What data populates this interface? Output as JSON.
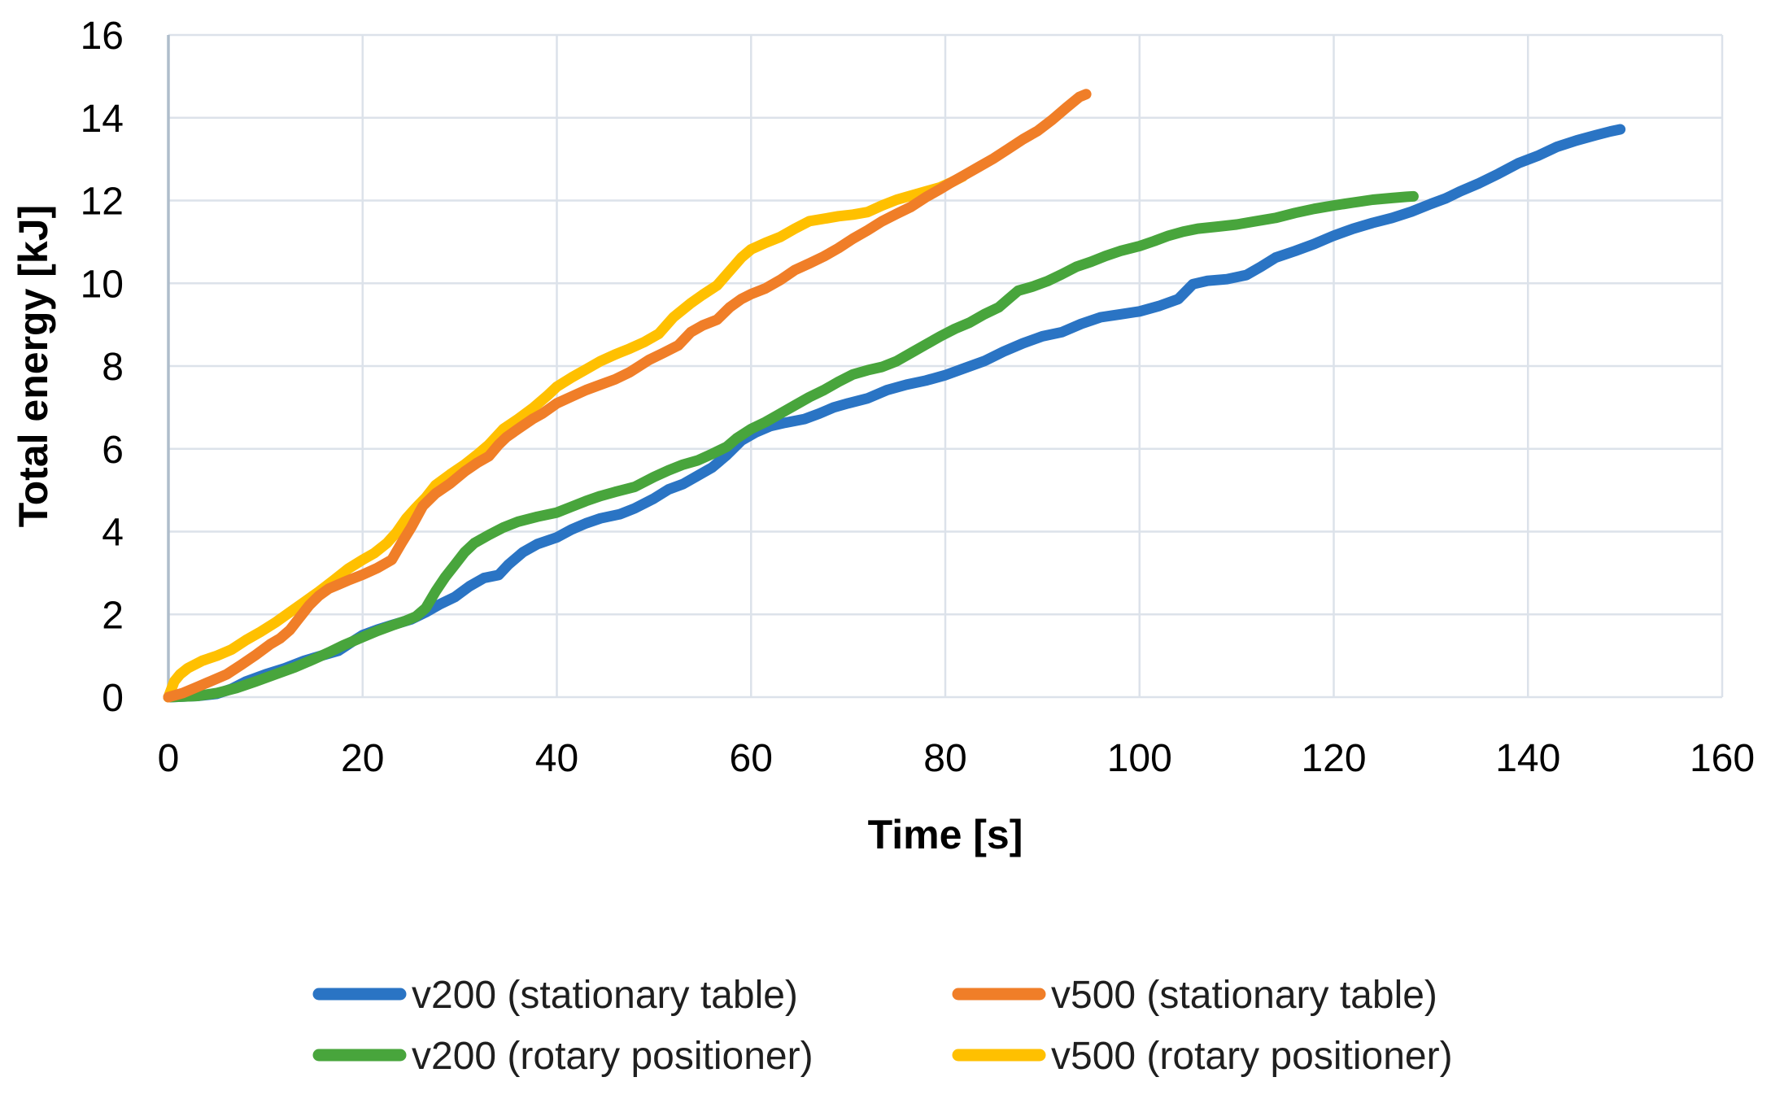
{
  "chart_data": {
    "type": "line",
    "title": "",
    "xlabel": "Time [s]",
    "ylabel": "Total energy [kJ]",
    "xlim": [
      0,
      160
    ],
    "ylim": [
      0,
      16
    ],
    "x_ticks": [
      "0",
      "20",
      "40",
      "60",
      "80",
      "100",
      "120",
      "140",
      "160"
    ],
    "x_tick_values": [
      0,
      20,
      40,
      60,
      80,
      100,
      120,
      140,
      160
    ],
    "y_ticks": [
      "0",
      "2",
      "4",
      "6",
      "8",
      "10",
      "12",
      "14",
      "16"
    ],
    "y_tick_values": [
      0,
      2,
      4,
      6,
      8,
      10,
      12,
      14,
      16
    ],
    "grid": true,
    "legend_position": "bottom",
    "colors": {
      "grid": "#DCE2EA",
      "axis": "#AFBDCB",
      "tick_text": "#000000",
      "legend_text": "#1F1F1F",
      "background": "#FFFFFF"
    },
    "legend_rows": [
      [
        0,
        1
      ],
      [
        2,
        3
      ]
    ],
    "draw_order": [
      0,
      2,
      3,
      1
    ],
    "series": [
      {
        "id": "v200-stationary-table",
        "name": "v200 (stationary table)",
        "color": "#2A74C4",
        "points": [
          [
            0,
            0
          ],
          [
            3,
            0.03
          ],
          [
            5,
            0.08
          ],
          [
            6.5,
            0.2
          ],
          [
            8,
            0.38
          ],
          [
            10,
            0.55
          ],
          [
            12,
            0.7
          ],
          [
            14,
            0.88
          ],
          [
            16,
            1.02
          ],
          [
            17.5,
            1.12
          ],
          [
            19,
            1.35
          ],
          [
            20,
            1.5
          ],
          [
            21.5,
            1.63
          ],
          [
            23,
            1.74
          ],
          [
            25,
            1.88
          ],
          [
            26.5,
            2.05
          ],
          [
            28,
            2.25
          ],
          [
            29.5,
            2.42
          ],
          [
            31,
            2.68
          ],
          [
            32.5,
            2.88
          ],
          [
            34,
            2.95
          ],
          [
            35,
            3.2
          ],
          [
            36.5,
            3.5
          ],
          [
            38,
            3.7
          ],
          [
            40,
            3.86
          ],
          [
            41.5,
            4.05
          ],
          [
            43,
            4.2
          ],
          [
            44.5,
            4.32
          ],
          [
            46.5,
            4.42
          ],
          [
            48,
            4.56
          ],
          [
            50,
            4.8
          ],
          [
            51.5,
            5.02
          ],
          [
            53,
            5.15
          ],
          [
            54.5,
            5.35
          ],
          [
            56,
            5.55
          ],
          [
            57.5,
            5.85
          ],
          [
            59,
            6.2
          ],
          [
            60.5,
            6.4
          ],
          [
            62,
            6.55
          ],
          [
            63.5,
            6.63
          ],
          [
            65.5,
            6.72
          ],
          [
            67,
            6.85
          ],
          [
            68.5,
            7.0
          ],
          [
            70,
            7.1
          ],
          [
            72,
            7.22
          ],
          [
            74,
            7.42
          ],
          [
            76,
            7.55
          ],
          [
            78,
            7.65
          ],
          [
            80,
            7.78
          ],
          [
            82,
            7.95
          ],
          [
            84,
            8.12
          ],
          [
            86,
            8.35
          ],
          [
            88,
            8.55
          ],
          [
            90,
            8.72
          ],
          [
            92,
            8.82
          ],
          [
            94,
            9.02
          ],
          [
            96,
            9.18
          ],
          [
            98,
            9.25
          ],
          [
            100,
            9.32
          ],
          [
            102,
            9.45
          ],
          [
            104,
            9.62
          ],
          [
            105.5,
            9.98
          ],
          [
            107,
            10.06
          ],
          [
            109,
            10.1
          ],
          [
            111,
            10.2
          ],
          [
            112.5,
            10.4
          ],
          [
            114,
            10.62
          ],
          [
            116,
            10.78
          ],
          [
            118,
            10.95
          ],
          [
            120,
            11.15
          ],
          [
            122,
            11.32
          ],
          [
            124,
            11.46
          ],
          [
            126,
            11.58
          ],
          [
            128,
            11.73
          ],
          [
            130,
            11.92
          ],
          [
            131.5,
            12.05
          ],
          [
            133,
            12.22
          ],
          [
            135,
            12.42
          ],
          [
            137,
            12.65
          ],
          [
            139,
            12.9
          ],
          [
            141,
            13.08
          ],
          [
            143,
            13.3
          ],
          [
            145,
            13.45
          ],
          [
            147,
            13.58
          ],
          [
            148.5,
            13.67
          ],
          [
            149.5,
            13.72
          ]
        ]
      },
      {
        "id": "v500-stationary-table",
        "name": "v500 (stationary table)",
        "color": "#F07E28",
        "points": [
          [
            0,
            0
          ],
          [
            1.5,
            0.1
          ],
          [
            3,
            0.25
          ],
          [
            5,
            0.45
          ],
          [
            6,
            0.55
          ],
          [
            7.5,
            0.78
          ],
          [
            9,
            1.02
          ],
          [
            10.5,
            1.28
          ],
          [
            11.5,
            1.42
          ],
          [
            12.5,
            1.62
          ],
          [
            13.5,
            1.92
          ],
          [
            14.5,
            2.22
          ],
          [
            15.5,
            2.45
          ],
          [
            16.5,
            2.62
          ],
          [
            17.5,
            2.72
          ],
          [
            18.5,
            2.82
          ],
          [
            20,
            2.96
          ],
          [
            21.5,
            3.12
          ],
          [
            23,
            3.32
          ],
          [
            24,
            3.72
          ],
          [
            25,
            4.1
          ],
          [
            26.2,
            4.62
          ],
          [
            27.5,
            4.92
          ],
          [
            29,
            5.16
          ],
          [
            30.5,
            5.45
          ],
          [
            31.8,
            5.66
          ],
          [
            33,
            5.82
          ],
          [
            34,
            6.1
          ],
          [
            34.8,
            6.28
          ],
          [
            36,
            6.48
          ],
          [
            37.5,
            6.72
          ],
          [
            38.5,
            6.85
          ],
          [
            40,
            7.1
          ],
          [
            41.5,
            7.26
          ],
          [
            43,
            7.42
          ],
          [
            44.5,
            7.55
          ],
          [
            46,
            7.68
          ],
          [
            47.5,
            7.85
          ],
          [
            48.5,
            8.0
          ],
          [
            49.5,
            8.15
          ],
          [
            51,
            8.32
          ],
          [
            52.5,
            8.5
          ],
          [
            53.8,
            8.82
          ],
          [
            55,
            8.98
          ],
          [
            56.5,
            9.12
          ],
          [
            57.8,
            9.42
          ],
          [
            59,
            9.62
          ],
          [
            60,
            9.74
          ],
          [
            61.5,
            9.88
          ],
          [
            63,
            10.08
          ],
          [
            64.5,
            10.32
          ],
          [
            66,
            10.48
          ],
          [
            67.5,
            10.65
          ],
          [
            69,
            10.85
          ],
          [
            70.5,
            11.08
          ],
          [
            72,
            11.28
          ],
          [
            73.5,
            11.5
          ],
          [
            75,
            11.68
          ],
          [
            76.5,
            11.85
          ],
          [
            78,
            12.08
          ],
          [
            79.5,
            12.28
          ],
          [
            80.5,
            12.42
          ],
          [
            82,
            12.62
          ],
          [
            83.5,
            12.82
          ],
          [
            85,
            13.02
          ],
          [
            86.5,
            13.25
          ],
          [
            88,
            13.48
          ],
          [
            89.5,
            13.68
          ],
          [
            91,
            13.95
          ],
          [
            92.5,
            14.25
          ],
          [
            93.8,
            14.5
          ],
          [
            94.5,
            14.57
          ]
        ]
      },
      {
        "id": "v200-rotary-positioner",
        "name": "v200 (rotary positioner)",
        "color": "#48A53C",
        "points": [
          [
            0,
            0
          ],
          [
            3,
            0.03
          ],
          [
            5,
            0.1
          ],
          [
            7,
            0.22
          ],
          [
            9,
            0.38
          ],
          [
            11,
            0.55
          ],
          [
            13,
            0.72
          ],
          [
            15,
            0.92
          ],
          [
            16.5,
            1.08
          ],
          [
            18,
            1.25
          ],
          [
            20,
            1.45
          ],
          [
            21.5,
            1.6
          ],
          [
            23,
            1.73
          ],
          [
            24.5,
            1.85
          ],
          [
            25.5,
            1.95
          ],
          [
            26.5,
            2.15
          ],
          [
            27.5,
            2.55
          ],
          [
            28.5,
            2.9
          ],
          [
            29.5,
            3.2
          ],
          [
            30.5,
            3.5
          ],
          [
            31.5,
            3.72
          ],
          [
            33,
            3.92
          ],
          [
            34.5,
            4.1
          ],
          [
            36,
            4.24
          ],
          [
            38,
            4.36
          ],
          [
            40,
            4.46
          ],
          [
            41.5,
            4.6
          ],
          [
            43,
            4.74
          ],
          [
            44.5,
            4.86
          ],
          [
            46,
            4.96
          ],
          [
            48,
            5.08
          ],
          [
            50,
            5.32
          ],
          [
            51.5,
            5.48
          ],
          [
            53,
            5.62
          ],
          [
            54.5,
            5.72
          ],
          [
            56,
            5.88
          ],
          [
            57.5,
            6.05
          ],
          [
            58.5,
            6.25
          ],
          [
            60,
            6.48
          ],
          [
            61.5,
            6.65
          ],
          [
            63,
            6.85
          ],
          [
            64.5,
            7.05
          ],
          [
            66,
            7.25
          ],
          [
            67.5,
            7.42
          ],
          [
            69,
            7.62
          ],
          [
            70.5,
            7.8
          ],
          [
            72,
            7.9
          ],
          [
            73.5,
            7.98
          ],
          [
            75,
            8.12
          ],
          [
            76.5,
            8.32
          ],
          [
            78,
            8.52
          ],
          [
            79.5,
            8.72
          ],
          [
            81,
            8.9
          ],
          [
            82.5,
            9.05
          ],
          [
            84,
            9.25
          ],
          [
            85.5,
            9.42
          ],
          [
            86.5,
            9.62
          ],
          [
            87.5,
            9.82
          ],
          [
            89,
            9.92
          ],
          [
            90.5,
            10.05
          ],
          [
            92,
            10.22
          ],
          [
            93.5,
            10.4
          ],
          [
            95,
            10.52
          ],
          [
            96.5,
            10.66
          ],
          [
            98,
            10.78
          ],
          [
            100,
            10.9
          ],
          [
            101.5,
            11.02
          ],
          [
            103,
            11.15
          ],
          [
            104.5,
            11.25
          ],
          [
            106,
            11.32
          ],
          [
            108,
            11.37
          ],
          [
            110,
            11.42
          ],
          [
            112,
            11.5
          ],
          [
            114,
            11.58
          ],
          [
            116,
            11.7
          ],
          [
            118,
            11.8
          ],
          [
            120,
            11.88
          ],
          [
            122,
            11.95
          ],
          [
            124,
            12.02
          ],
          [
            126,
            12.06
          ],
          [
            127.5,
            12.09
          ],
          [
            128.2,
            12.1
          ]
        ]
      },
      {
        "id": "v500-rotary-positioner",
        "name": "v500 (rotary positioner)",
        "color": "#FFC000",
        "points": [
          [
            0,
            0
          ],
          [
            0.6,
            0.38
          ],
          [
            1.2,
            0.55
          ],
          [
            2,
            0.7
          ],
          [
            3.5,
            0.88
          ],
          [
            5,
            1.0
          ],
          [
            6.5,
            1.15
          ],
          [
            8,
            1.38
          ],
          [
            9.5,
            1.58
          ],
          [
            11,
            1.8
          ],
          [
            12.5,
            2.05
          ],
          [
            14,
            2.3
          ],
          [
            15.5,
            2.55
          ],
          [
            17,
            2.82
          ],
          [
            18.5,
            3.1
          ],
          [
            20,
            3.32
          ],
          [
            21.2,
            3.48
          ],
          [
            22.5,
            3.72
          ],
          [
            23.5,
            3.98
          ],
          [
            24.5,
            4.32
          ],
          [
            25.5,
            4.58
          ],
          [
            26.5,
            4.82
          ],
          [
            27.5,
            5.12
          ],
          [
            29,
            5.38
          ],
          [
            30.5,
            5.62
          ],
          [
            31.8,
            5.86
          ],
          [
            33,
            6.1
          ],
          [
            34.5,
            6.48
          ],
          [
            36,
            6.72
          ],
          [
            37.5,
            6.98
          ],
          [
            39,
            7.28
          ],
          [
            40,
            7.5
          ],
          [
            41.5,
            7.72
          ],
          [
            43,
            7.92
          ],
          [
            44.5,
            8.12
          ],
          [
            46,
            8.28
          ],
          [
            47.5,
            8.42
          ],
          [
            49,
            8.58
          ],
          [
            50.5,
            8.78
          ],
          [
            52,
            9.18
          ],
          [
            53.8,
            9.52
          ],
          [
            55,
            9.72
          ],
          [
            56.5,
            9.95
          ],
          [
            58,
            10.35
          ],
          [
            59,
            10.62
          ],
          [
            60,
            10.82
          ],
          [
            61.5,
            10.98
          ],
          [
            63,
            11.12
          ],
          [
            64.5,
            11.32
          ],
          [
            66,
            11.5
          ],
          [
            67.5,
            11.56
          ],
          [
            69,
            11.62
          ],
          [
            70.5,
            11.66
          ],
          [
            72,
            11.72
          ],
          [
            73.5,
            11.88
          ],
          [
            75,
            12.02
          ],
          [
            76.5,
            12.12
          ],
          [
            78,
            12.22
          ],
          [
            79.5,
            12.32
          ],
          [
            80.7,
            12.45
          ],
          [
            81.8,
            12.58
          ]
        ]
      }
    ]
  }
}
